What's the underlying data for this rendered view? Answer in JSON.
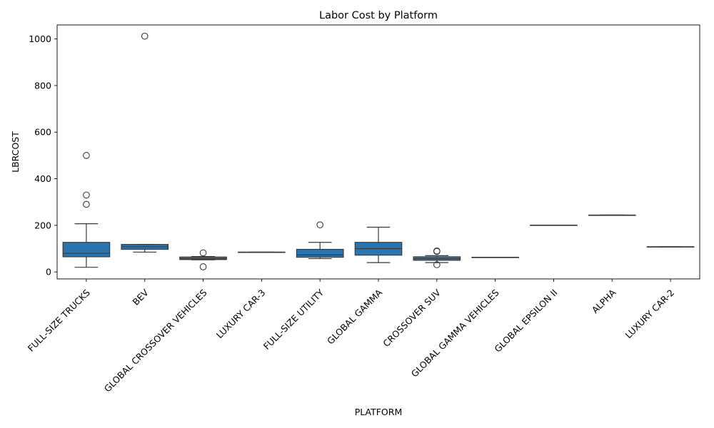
{
  "chart_data": {
    "type": "box",
    "title": "Labor Cost by Platform",
    "xlabel": "PLATFORM",
    "ylabel": "LBRCOST",
    "ylim": [
      -30,
      1060
    ],
    "yticks": [
      0,
      200,
      400,
      600,
      800,
      1000
    ],
    "grid": false,
    "legend": "none",
    "box_color": "#2a75b0",
    "line_color": "#3a3a3a",
    "categories": [
      "FULL-SIZE TRUCKS",
      "BEV",
      "GLOBAL CROSSOVER VEHICLES",
      "LUXURY CAR-3",
      "FULL-SIZE UTILITY",
      "GLOBAL GAMMA",
      "CROSSOVER SUV",
      "GLOBAL GAMMA VEHICLES",
      "GLOBAL EPSILON II",
      "ALPHA",
      "LUXURY CAR-2"
    ],
    "boxes": [
      {
        "whislo": 20,
        "q1": 65,
        "med": 80,
        "q3": 127,
        "whishi": 207,
        "fliers": [
          290,
          330,
          500
        ]
      },
      {
        "whislo": 85,
        "q1": 97,
        "med": 108,
        "q3": 118,
        "whishi": 118,
        "fliers": [
          1012
        ]
      },
      {
        "whislo": 52,
        "q1": 53,
        "med": 57,
        "q3": 64,
        "whishi": 66,
        "fliers": [
          82,
          22
        ]
      },
      {
        "whislo": 85,
        "q1": 85,
        "med": 85,
        "q3": 85,
        "whishi": 85,
        "fliers": []
      },
      {
        "whislo": 57,
        "q1": 63,
        "med": 73,
        "q3": 97,
        "whishi": 127,
        "fliers": [
          202
        ]
      },
      {
        "whislo": 40,
        "q1": 72,
        "med": 100,
        "q3": 127,
        "whishi": 192,
        "fliers": []
      },
      {
        "whislo": 40,
        "q1": 50,
        "med": 57,
        "q3": 65,
        "whishi": 70,
        "fliers": [
          90,
          88,
          31
        ]
      },
      {
        "whislo": 63,
        "q1": 63,
        "med": 63,
        "q3": 63,
        "whishi": 63,
        "fliers": []
      },
      {
        "whislo": 201,
        "q1": 201,
        "med": 201,
        "q3": 201,
        "whishi": 201,
        "fliers": []
      },
      {
        "whislo": 244,
        "q1": 244,
        "med": 244,
        "q3": 244,
        "whishi": 244,
        "fliers": []
      },
      {
        "whislo": 108,
        "q1": 108,
        "med": 108,
        "q3": 108,
        "whishi": 108,
        "fliers": []
      }
    ]
  }
}
